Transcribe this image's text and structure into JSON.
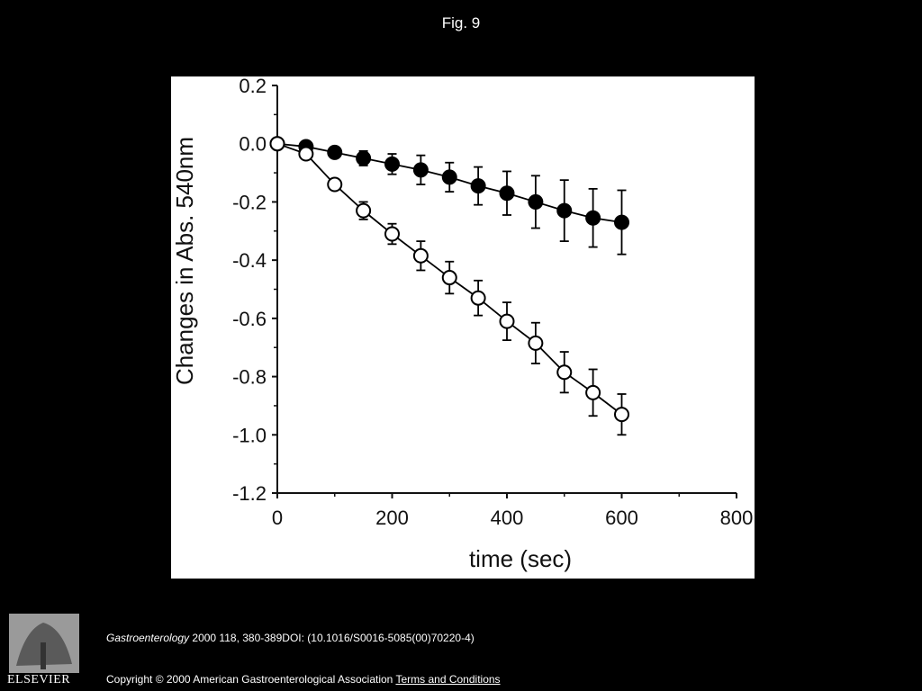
{
  "title": "Fig. 9",
  "chart_data": {
    "type": "line",
    "xlabel": "time (sec)",
    "ylabel": "Changes in Abs. 540nm",
    "x": [
      0,
      50,
      100,
      150,
      200,
      250,
      300,
      350,
      400,
      450,
      500,
      550,
      600
    ],
    "series": [
      {
        "color": "#000000",
        "marker_fill": "#000000",
        "values": [
          0,
          -0.01,
          -0.03,
          -0.05,
          -0.07,
          -0.09,
          -0.115,
          -0.145,
          -0.17,
          -0.2,
          -0.23,
          -0.255,
          -0.27
        ],
        "errors": [
          0,
          0.01,
          0.01,
          0.025,
          0.035,
          0.05,
          0.05,
          0.065,
          0.075,
          0.09,
          0.105,
          0.1,
          0.11
        ]
      },
      {
        "color": "#000000",
        "marker_fill": "#ffffff",
        "values": [
          0,
          -0.035,
          -0.14,
          -0.23,
          -0.31,
          -0.385,
          -0.46,
          -0.53,
          -0.61,
          -0.685,
          -0.785,
          -0.855,
          -0.93
        ],
        "errors": [
          0,
          0.01,
          0.01,
          0.03,
          0.035,
          0.05,
          0.055,
          0.06,
          0.065,
          0.07,
          0.07,
          0.08,
          0.07
        ]
      }
    ],
    "xlim": [
      0,
      800
    ],
    "xticks": [
      0,
      200,
      400,
      600,
      800
    ],
    "ylim": [
      -1.2,
      0.2
    ],
    "yticks": [
      -1.2,
      {
        "value": -1,
        "label": "-1.0"
      },
      -0.8,
      -0.6,
      -0.4,
      -0.2,
      {
        "value": 0,
        "label": "0.0"
      },
      0.2
    ],
    "grid": false
  },
  "footer": {
    "journal": "Gastroenterology",
    "citation": "2000 118, 380-389DOI: (10.1016/S0016-5085(00)70220-4)",
    "copyright": "Copyright © 2000 American Gastroenterological Association",
    "link": "Terms and Conditions"
  },
  "logo": "ELSEVIER"
}
